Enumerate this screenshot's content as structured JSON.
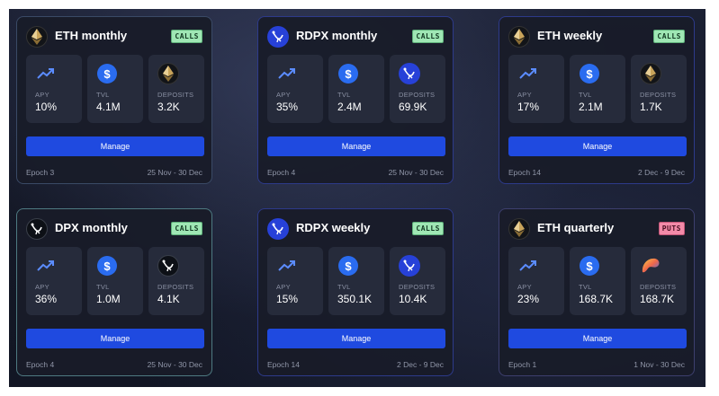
{
  "vaults": [
    {
      "title": "ETH monthly",
      "token": "eth-icon",
      "type": "CALLS",
      "apy": "10%",
      "tvl": "4.1M",
      "deposits": "3.2K",
      "epoch": "Epoch 3",
      "dates": "25 Nov - 30 Dec"
    },
    {
      "title": "RDPX monthly",
      "token": "rdpx-icon",
      "type": "CALLS",
      "apy": "35%",
      "tvl": "2.4M",
      "deposits": "69.9K",
      "epoch": "Epoch 4",
      "dates": "25 Nov - 30 Dec"
    },
    {
      "title": "ETH weekly",
      "token": "eth-icon",
      "type": "CALLS",
      "apy": "17%",
      "tvl": "2.1M",
      "deposits": "1.7K",
      "epoch": "Epoch 14",
      "dates": "2 Dec - 9 Dec"
    },
    {
      "title": "DPX monthly",
      "token": "dpx-icon",
      "type": "CALLS",
      "apy": "36%",
      "tvl": "1.0M",
      "deposits": "4.1K",
      "epoch": "Epoch 4",
      "dates": "25 Nov - 30 Dec"
    },
    {
      "title": "RDPX weekly",
      "token": "rdpx-icon",
      "type": "CALLS",
      "apy": "15%",
      "tvl": "350.1K",
      "deposits": "10.4K",
      "epoch": "Epoch 14",
      "dates": "2 Dec - 9 Dec"
    },
    {
      "title": "ETH quarterly",
      "token": "eth-icon",
      "type": "PUTS",
      "apy": "23%",
      "tvl": "168.7K",
      "deposits": "168.7K",
      "epoch": "Epoch 1",
      "dates": "1 Nov - 30 Dec"
    }
  ],
  "labels": {
    "apy": "APY",
    "tvl": "TVL",
    "deposits": "DEPOSITS",
    "manage": "Manage"
  },
  "colors": {
    "calls_badge": "#9fe7b4",
    "puts_badge": "#f38aa8",
    "manage_button": "#1f4ae0",
    "usd_icon": "#2a6cf0",
    "rdpx_token": "#2741d8"
  }
}
